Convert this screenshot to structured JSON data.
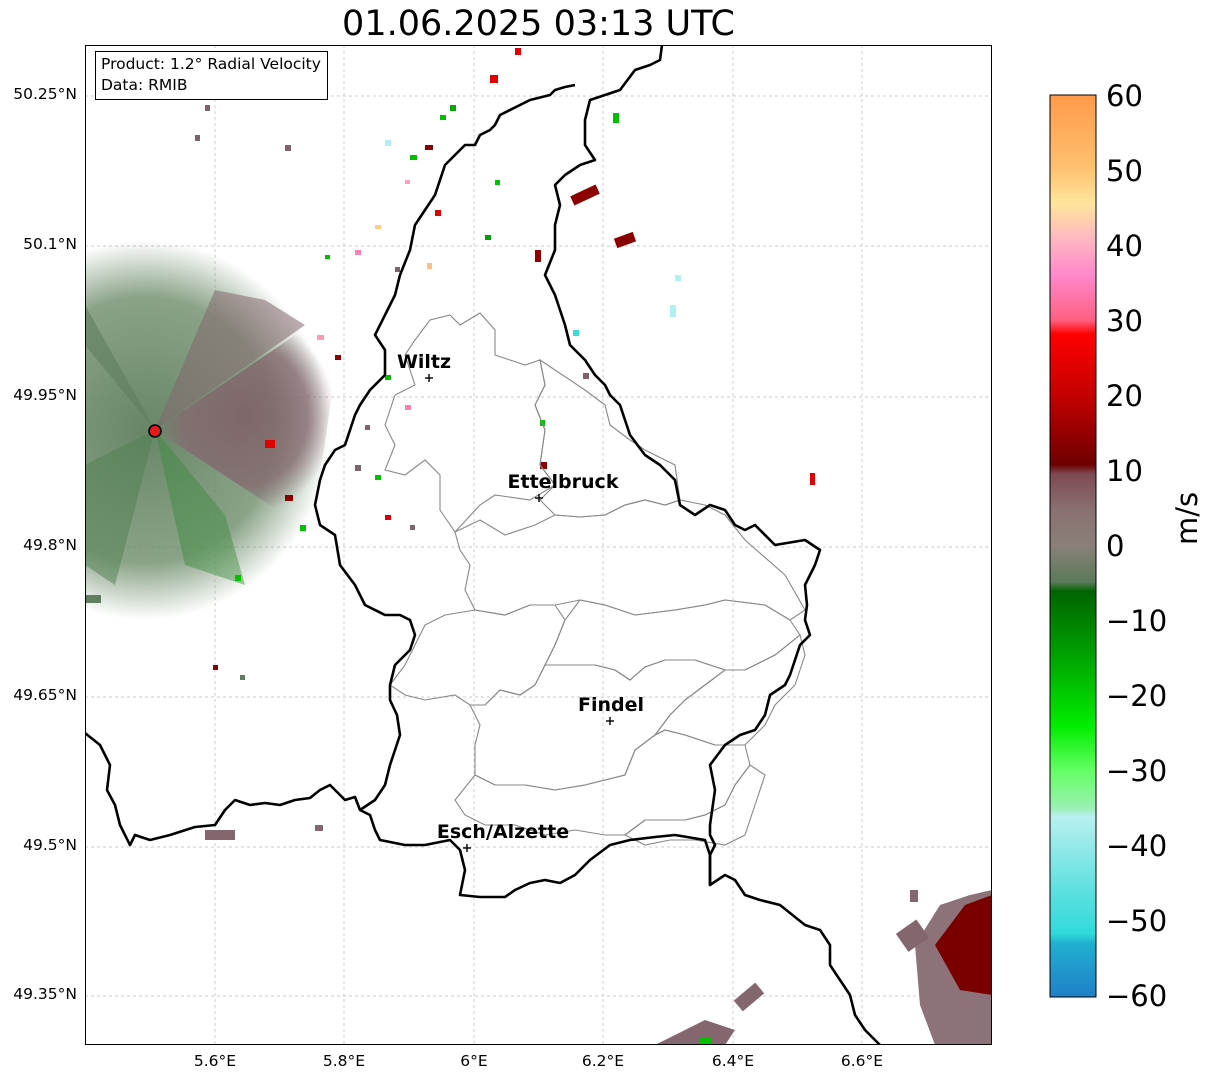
{
  "title": "01.06.2025 03:13 UTC",
  "info_box": {
    "product": "Product: 1.2° Radial Velocity",
    "data": "Data: RMIB"
  },
  "lat_labels": [
    "50.25°N",
    "50.1°N",
    "49.95°N",
    "49.8°N",
    "49.65°N",
    "49.5°N",
    "49.35°N"
  ],
  "lon_labels": [
    "5.6°E",
    "5.8°E",
    "6°E",
    "6.2°E",
    "6.4°E",
    "6.6°E"
  ],
  "cities": [
    {
      "name": "Wiltz"
    },
    {
      "name": "Ettelbruck"
    },
    {
      "name": "Findel"
    },
    {
      "name": "Esch/Alzette"
    }
  ],
  "colorbar": {
    "unit": "m/s",
    "ticks": [
      "60",
      "50",
      "40",
      "30",
      "20",
      "10",
      "0",
      "−10",
      "−20",
      "−30",
      "−40",
      "−50",
      "−60"
    ],
    "min": -60,
    "max": 60
  },
  "radar_site_color": "#e41a1c",
  "border_color": "#000000",
  "canton_color": "#888888"
}
